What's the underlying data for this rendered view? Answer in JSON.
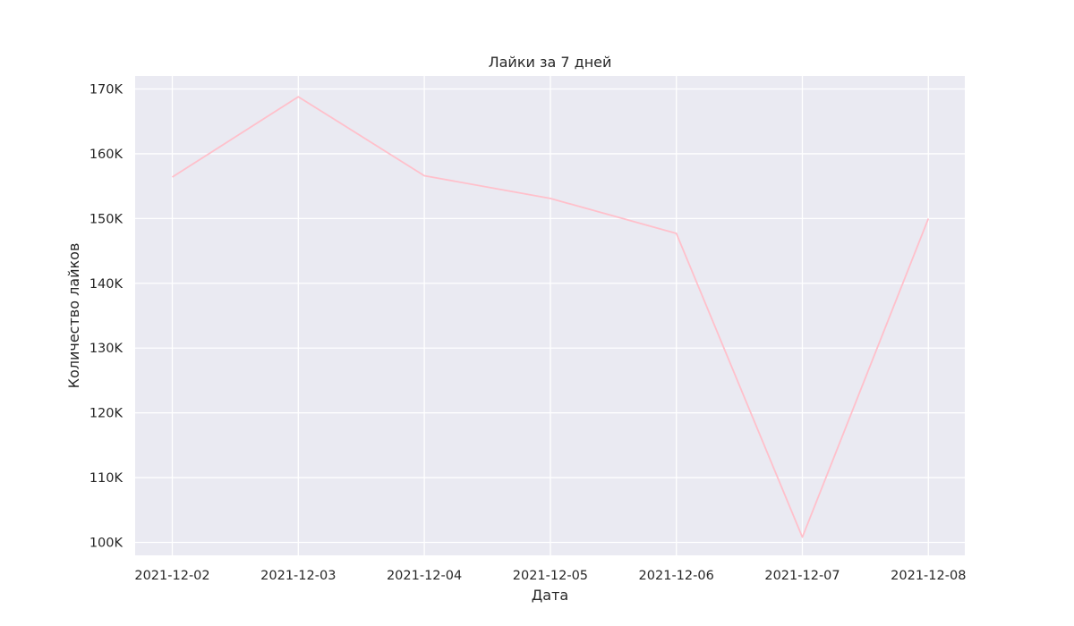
{
  "chart_data": {
    "type": "line",
    "title": "Лайки за 7 дней",
    "xlabel": "Дата",
    "ylabel": "Количество лайков",
    "x": [
      "2021-12-02",
      "2021-12-03",
      "2021-12-04",
      "2021-12-05",
      "2021-12-06",
      "2021-12-07",
      "2021-12-08"
    ],
    "series": [
      {
        "values": [
          156400,
          168800,
          156600,
          153100,
          147700,
          100800,
          150000
        ],
        "color": "#ffc0cb"
      }
    ],
    "ylim": [
      98000,
      172000
    ],
    "yticks": [
      100000,
      110000,
      120000,
      130000,
      140000,
      150000,
      160000,
      170000
    ],
    "ytick_labels": [
      "100K",
      "110K",
      "120K",
      "130K",
      "140K",
      "150K",
      "160K",
      "170K"
    ],
    "grid": true,
    "background": "#eaeaf2",
    "grid_color": "#ffffff",
    "legend": "none"
  }
}
